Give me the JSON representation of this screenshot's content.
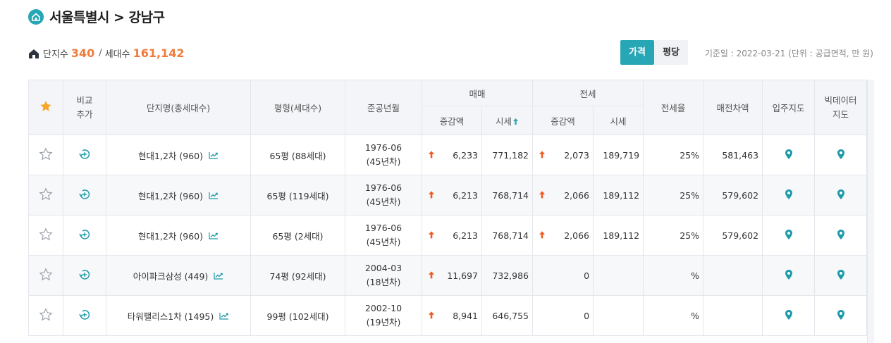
{
  "header": {
    "title": "서울특별시 > 강남구",
    "complex_count_label": "단지수",
    "complex_count": "340",
    "separator": "/",
    "household_count_label": "세대수",
    "household_count": "161,142"
  },
  "toggle": {
    "price_label": "가격",
    "pyeong_label": "평당",
    "selected": "가격"
  },
  "base_date": "기준일 : 2022-03-21 (단위 : 공급면적, 만 원)",
  "colors": {
    "accent": "#27a7b5",
    "highlight_number": "#f07c3b",
    "arrow_up": "#f05a1e",
    "star_header": "#f6a623"
  },
  "table": {
    "headers": {
      "compare": "비교\n추가",
      "compare_line1": "비교",
      "compare_line2": "추가",
      "name": "단지명(총세대수)",
      "size": "평형(세대수)",
      "built": "준공년월",
      "sale_group": "매매",
      "sale_change": "증감액",
      "sale_price": "시세",
      "jeonse_group": "전세",
      "jeonse_change": "증감액",
      "jeonse_price": "시세",
      "jeonse_ratio": "전세율",
      "gap": "매전차액",
      "move_map": "입주지도",
      "bigdata_line1": "빅데이터",
      "bigdata_line2": "지도"
    },
    "rows": [
      {
        "name": "현대1,2차 (960)",
        "size": "65평 (88세대)",
        "built_date": "1976-06",
        "built_age": "(45년차)",
        "sale_change": "6,233",
        "sale_price": "771,182",
        "jeonse_change": "2,073",
        "jeonse_price": "189,719",
        "ratio": "25%",
        "gap": "581,463"
      },
      {
        "name": "현대1,2차 (960)",
        "size": "65평 (119세대)",
        "built_date": "1976-06",
        "built_age": "(45년차)",
        "sale_change": "6,213",
        "sale_price": "768,714",
        "jeonse_change": "2,066",
        "jeonse_price": "189,112",
        "ratio": "25%",
        "gap": "579,602"
      },
      {
        "name": "현대1,2차 (960)",
        "size": "65평 (2세대)",
        "built_date": "1976-06",
        "built_age": "(45년차)",
        "sale_change": "6,213",
        "sale_price": "768,714",
        "jeonse_change": "2,066",
        "jeonse_price": "189,112",
        "ratio": "25%",
        "gap": "579,602"
      },
      {
        "name": "아이파크삼성 (449)",
        "size": "74평 (92세대)",
        "built_date": "2004-03",
        "built_age": "(18년차)",
        "sale_change": "11,697",
        "sale_price": "732,986",
        "jeonse_change": "0",
        "jeonse_price": "",
        "ratio": "%",
        "gap": ""
      },
      {
        "name": "타워팰리스1차 (1495)",
        "size": "99평 (102세대)",
        "built_date": "2002-10",
        "built_age": "(19년차)",
        "sale_change": "8,941",
        "sale_price": "646,755",
        "jeonse_change": "0",
        "jeonse_price": "",
        "ratio": "%",
        "gap": ""
      }
    ]
  }
}
